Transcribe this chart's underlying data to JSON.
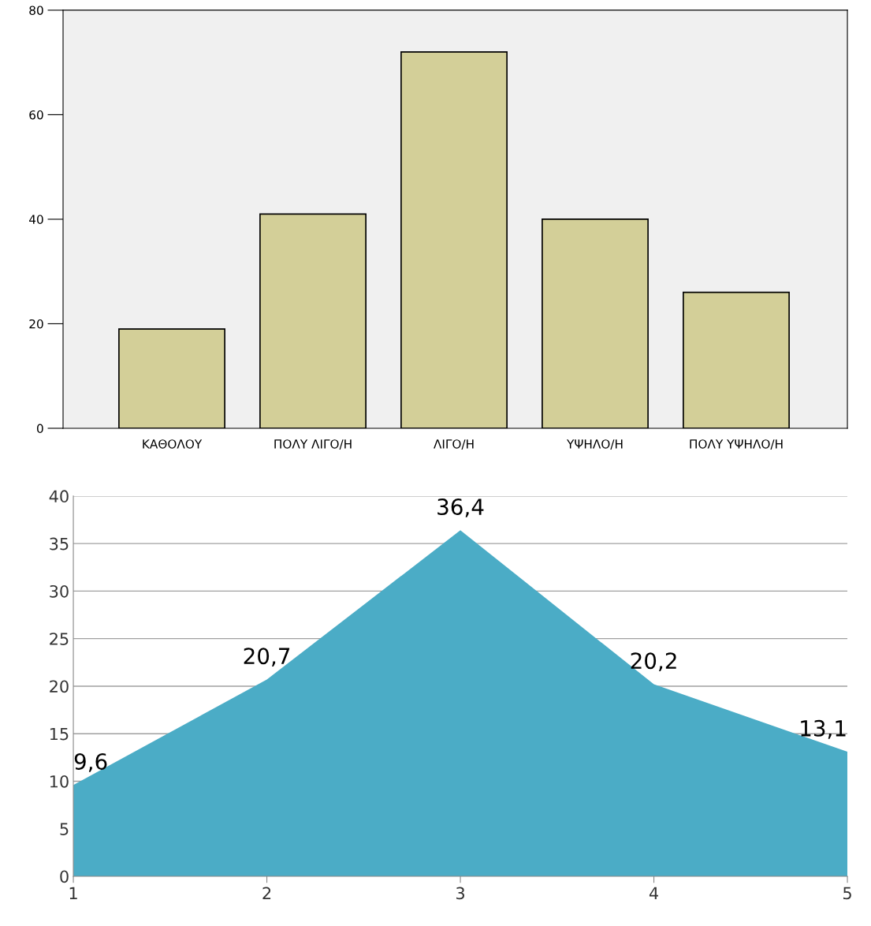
{
  "chart_data": [
    {
      "type": "bar",
      "categories": [
        "ΚΑΘΟΛΟΥ",
        "ΠΟΛΥ ΛΙΓΟ/Η",
        "ΛΙΓΟ/Η",
        "ΥΨΗΛΟ/Η",
        "ΠΟΛΥ ΥΨΗΛΟ/Η"
      ],
      "values": [
        19,
        41,
        72,
        40,
        26
      ],
      "color": "#d3cf98",
      "ylim": [
        0,
        80
      ],
      "yticks": [
        0,
        20,
        40,
        60,
        80
      ],
      "grid": false
    },
    {
      "type": "area",
      "x": [
        1,
        2,
        3,
        4,
        5
      ],
      "values": [
        9.6,
        20.7,
        36.4,
        20.2,
        13.1
      ],
      "value_labels": [
        "9,6",
        "20,7",
        "36,4",
        "20,2",
        "13,1"
      ],
      "color": "#4bacc6",
      "xlim": [
        1,
        5
      ],
      "xticks": [
        1,
        2,
        3,
        4,
        5
      ],
      "ylim": [
        0,
        40
      ],
      "yticks": [
        0,
        5,
        10,
        15,
        20,
        25,
        30,
        35,
        40
      ],
      "grid": "y"
    }
  ]
}
